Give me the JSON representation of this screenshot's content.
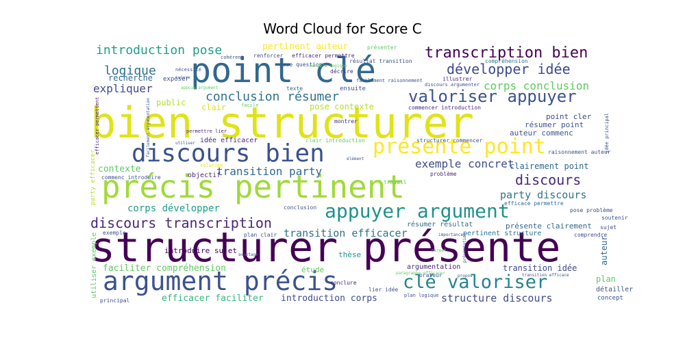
{
  "chart_data": {
    "type": "wordcloud",
    "title": "Word Cloud for Score C",
    "colormap": "viridis",
    "words": [
      {
        "text": "bien structurer",
        "weight": 1.0,
        "color": "#dfe318"
      },
      {
        "text": "structurer présente",
        "weight": 0.97,
        "color": "#440154"
      },
      {
        "text": "point clé",
        "weight": 0.88,
        "color": "#31688e"
      },
      {
        "text": "précis pertinent",
        "weight": 0.85,
        "color": "#a0da39"
      },
      {
        "text": "argument précis",
        "weight": 0.78,
        "color": "#3b528b"
      },
      {
        "text": "discours bien",
        "weight": 0.72,
        "color": "#3b528b"
      },
      {
        "text": "présente point",
        "weight": 0.68,
        "color": "#fde725"
      },
      {
        "text": "appuyer argument",
        "weight": 0.6,
        "color": "#21918c"
      },
      {
        "text": "clé valoriser",
        "weight": 0.58,
        "color": "#26828e"
      },
      {
        "text": "valoriser appuyer",
        "weight": 0.48,
        "color": "#3b528b"
      },
      {
        "text": "transcription bien",
        "weight": 0.44,
        "color": "#440154"
      },
      {
        "text": "discours transcription",
        "weight": 0.42,
        "color": "#482878"
      },
      {
        "text": "développer idée",
        "weight": 0.38,
        "color": "#3e4a89"
      },
      {
        "text": "introduction pose",
        "weight": 0.36,
        "color": "#1f9e89"
      },
      {
        "text": "conclusion résumer",
        "weight": 0.36,
        "color": "#2c728e"
      },
      {
        "text": "logique",
        "weight": 0.3,
        "color": "#2c728e"
      },
      {
        "text": "expliquer",
        "weight": 0.3,
        "color": "#3e4a89"
      },
      {
        "text": "corps conclusion",
        "weight": 0.28,
        "color": "#5ec962"
      },
      {
        "text": "discours",
        "weight": 0.3,
        "color": "#482878"
      },
      {
        "text": "exemple concret",
        "weight": 0.26,
        "color": "#3e4a89"
      },
      {
        "text": "party discours",
        "weight": 0.26,
        "color": "#2c728e"
      },
      {
        "text": "transition party",
        "weight": 0.24,
        "color": "#31688e"
      },
      {
        "text": "corps développer",
        "weight": 0.24,
        "color": "#1f9e89"
      },
      {
        "text": "transition efficacer",
        "weight": 0.24,
        "color": "#2c728e"
      },
      {
        "text": "structure discours",
        "weight": 0.24,
        "color": "#3e4a89"
      },
      {
        "text": "efficacer faciliter",
        "weight": 0.22,
        "color": "#35b779"
      },
      {
        "text": "introduction corps",
        "weight": 0.22,
        "color": "#3e4a89"
      },
      {
        "text": "pertinent auteur",
        "weight": 0.2,
        "color": "#fde725"
      },
      {
        "text": "recherche",
        "weight": 0.2,
        "color": "#31688e"
      },
      {
        "text": "public",
        "weight": 0.18,
        "color": "#b5de2b"
      },
      {
        "text": "clair",
        "weight": 0.18,
        "color": "#dfe318"
      },
      {
        "text": "pose contexte",
        "weight": 0.18,
        "color": "#b5de2b"
      },
      {
        "text": "clairement point",
        "weight": 0.18,
        "color": "#31688e"
      },
      {
        "text": "présente clairement",
        "weight": 0.16,
        "color": "#31688e"
      },
      {
        "text": "faciliter compréhension",
        "weight": 0.16,
        "color": "#5ec962"
      },
      {
        "text": "point cler",
        "weight": 0.14,
        "color": "#3e4a89"
      },
      {
        "text": "résumer point",
        "weight": 0.14,
        "color": "#3b528b"
      },
      {
        "text": "auteur commenc",
        "weight": 0.12,
        "color": "#3b528b"
      },
      {
        "text": "contexte",
        "weight": 0.16,
        "color": "#5ec962"
      },
      {
        "text": "idée efficacer",
        "weight": 0.12,
        "color": "#482878"
      },
      {
        "text": "objectif",
        "weight": 0.12,
        "color": "#482878"
      },
      {
        "text": "introduire sujet",
        "weight": 0.13,
        "color": "#440154"
      },
      {
        "text": "pertinent structure",
        "weight": 0.12,
        "color": "#2c728e"
      },
      {
        "text": "résumer résultat",
        "weight": 0.1,
        "color": "#31688e"
      },
      {
        "text": "transition idée",
        "weight": 0.13,
        "color": "#3e4a89"
      },
      {
        "text": "thèse",
        "weight": 0.12,
        "color": "#21918c"
      },
      {
        "text": "étude",
        "weight": 0.12,
        "color": "#5ec962"
      },
      {
        "text": "argumentation",
        "weight": 0.1,
        "color": "#482878"
      },
      {
        "text": "auteur",
        "weight": 0.12,
        "color": "#31688e"
      },
      {
        "text": "plan",
        "weight": 0.12,
        "color": "#5ec962"
      },
      {
        "text": "détailler",
        "weight": 0.08,
        "color": "#3b528b"
      },
      {
        "text": "concept",
        "weight": 0.07,
        "color": "#3b528b"
      },
      {
        "text": "utiliser exemple",
        "weight": 0.1,
        "color": "#5ec962"
      },
      {
        "text": "party efficacer",
        "weight": 0.09,
        "color": "#b5de2b"
      },
      {
        "text": "principal",
        "weight": 0.06,
        "color": "#3e4a89"
      },
      {
        "text": "exposer",
        "weight": 0.09,
        "color": "#3e4a89"
      },
      {
        "text": "ensuite",
        "weight": 0.08,
        "color": "#3e4a89"
      },
      {
        "text": "texte",
        "weight": 0.06,
        "color": "#31688e"
      },
      {
        "text": "renforcer",
        "weight": 0.07,
        "color": "#3b528b"
      },
      {
        "text": "efficacer permettre",
        "weight": 0.07,
        "color": "#482878"
      },
      {
        "text": "présenter",
        "weight": 0.07,
        "color": "#5ec962"
      },
      {
        "text": "résultat transition",
        "weight": 0.06,
        "color": "#3b528b"
      },
      {
        "text": "pose question",
        "weight": 0.06,
        "color": "#3b528b"
      },
      {
        "text": "décrire",
        "weight": 0.07,
        "color": "#482878"
      },
      {
        "text": "illustrer",
        "weight": 0.07,
        "color": "#482878"
      },
      {
        "text": "compréhension",
        "weight": 0.06,
        "color": "#2c728e"
      },
      {
        "text": "commencer introduction",
        "weight": 0.07,
        "color": "#482878"
      },
      {
        "text": "montrer",
        "weight": 0.06,
        "color": "#482878"
      },
      {
        "text": "structurer commencer",
        "weight": 0.06,
        "color": "#3b528b"
      },
      {
        "text": "clair introduction",
        "weight": 0.06,
        "color": "#5ec962"
      },
      {
        "text": "permettre lier",
        "weight": 0.06,
        "color": "#482878"
      },
      {
        "text": "efficacer permettent",
        "weight": 0.05,
        "color": "#482878"
      },
      {
        "text": "commenc introduire",
        "weight": 0.06,
        "color": "#3b528b"
      },
      {
        "text": "solution",
        "weight": 0.05,
        "color": "#dfe318"
      },
      {
        "text": "problème",
        "weight": 0.07,
        "color": "#482878"
      },
      {
        "text": "travail",
        "weight": 0.06,
        "color": "#5ec962"
      },
      {
        "text": "conclusion",
        "weight": 0.06,
        "color": "#3b528b"
      },
      {
        "text": "soutenir",
        "weight": 0.07,
        "color": "#3e4a89"
      },
      {
        "text": "sujet",
        "weight": 0.06,
        "color": "#3e4a89"
      },
      {
        "text": "comprendre",
        "weight": 0.06,
        "color": "#3e4a89"
      },
      {
        "text": "efficace permettre",
        "weight": 0.06,
        "color": "#31688e"
      },
      {
        "text": "pose problème",
        "weight": 0.07,
        "color": "#3e4a89"
      },
      {
        "text": "raisonnement auteur",
        "weight": 0.06,
        "color": "#3b528b"
      },
      {
        "text": "idée principal",
        "weight": 0.06,
        "color": "#3b528b"
      },
      {
        "text": "orateur",
        "weight": 0.06,
        "color": "#3b528b"
      },
      {
        "text": "conclure",
        "weight": 0.06,
        "color": "#482878"
      },
      {
        "text": "lier idée",
        "weight": 0.06,
        "color": "#3b528b"
      },
      {
        "text": "plan clair",
        "weight": 0.06,
        "color": "#3b528b"
      },
      {
        "text": "plan logique",
        "weight": 0.05,
        "color": "#3b528b"
      },
      {
        "text": "exemple",
        "weight": 0.05,
        "color": "#3b528b"
      },
      {
        "text": "nécessité",
        "weight": 0.05,
        "color": "#3b528b"
      },
      {
        "text": "cohérent",
        "weight": 0.05,
        "color": "#3b528b"
      },
      {
        "text": "facilement raisonnement",
        "weight": 0.05,
        "color": "#3b528b"
      },
      {
        "text": "discours argumenter",
        "weight": 0.05,
        "color": "#3b528b"
      },
      {
        "text": "appuie argument",
        "weight": 0.04,
        "color": "#5ec962"
      },
      {
        "text": "paragraphe efficacer",
        "weight": 0.04,
        "color": "#5ec962"
      },
      {
        "text": "facile",
        "weight": 0.05,
        "color": "#5ec962"
      },
      {
        "text": "permet",
        "weight": 0.05,
        "color": "#5ec962"
      },
      {
        "text": "manière logique",
        "weight": 0.04,
        "color": "#5ec962"
      },
      {
        "text": "suivre",
        "weight": 0.05,
        "color": "#3b528b"
      },
      {
        "text": "avantage",
        "weight": 0.04,
        "color": "#3b528b"
      },
      {
        "text": "propos",
        "weight": 0.04,
        "color": "#3b528b"
      },
      {
        "text": "transition efficace",
        "weight": 0.04,
        "color": "#3b528b"
      },
      {
        "text": "importance",
        "weight": 0.04,
        "color": "#3b528b"
      },
      {
        "text": "présentation",
        "weight": 0.04,
        "color": "#3b528b"
      },
      {
        "text": "utiliser",
        "weight": 0.04,
        "color": "#3b528b"
      },
      {
        "text": "élément",
        "weight": 0.04,
        "color": "#3b528b"
      },
      {
        "text": "facilement argumentation",
        "weight": 0.04,
        "color": "#3b528b"
      }
    ]
  }
}
